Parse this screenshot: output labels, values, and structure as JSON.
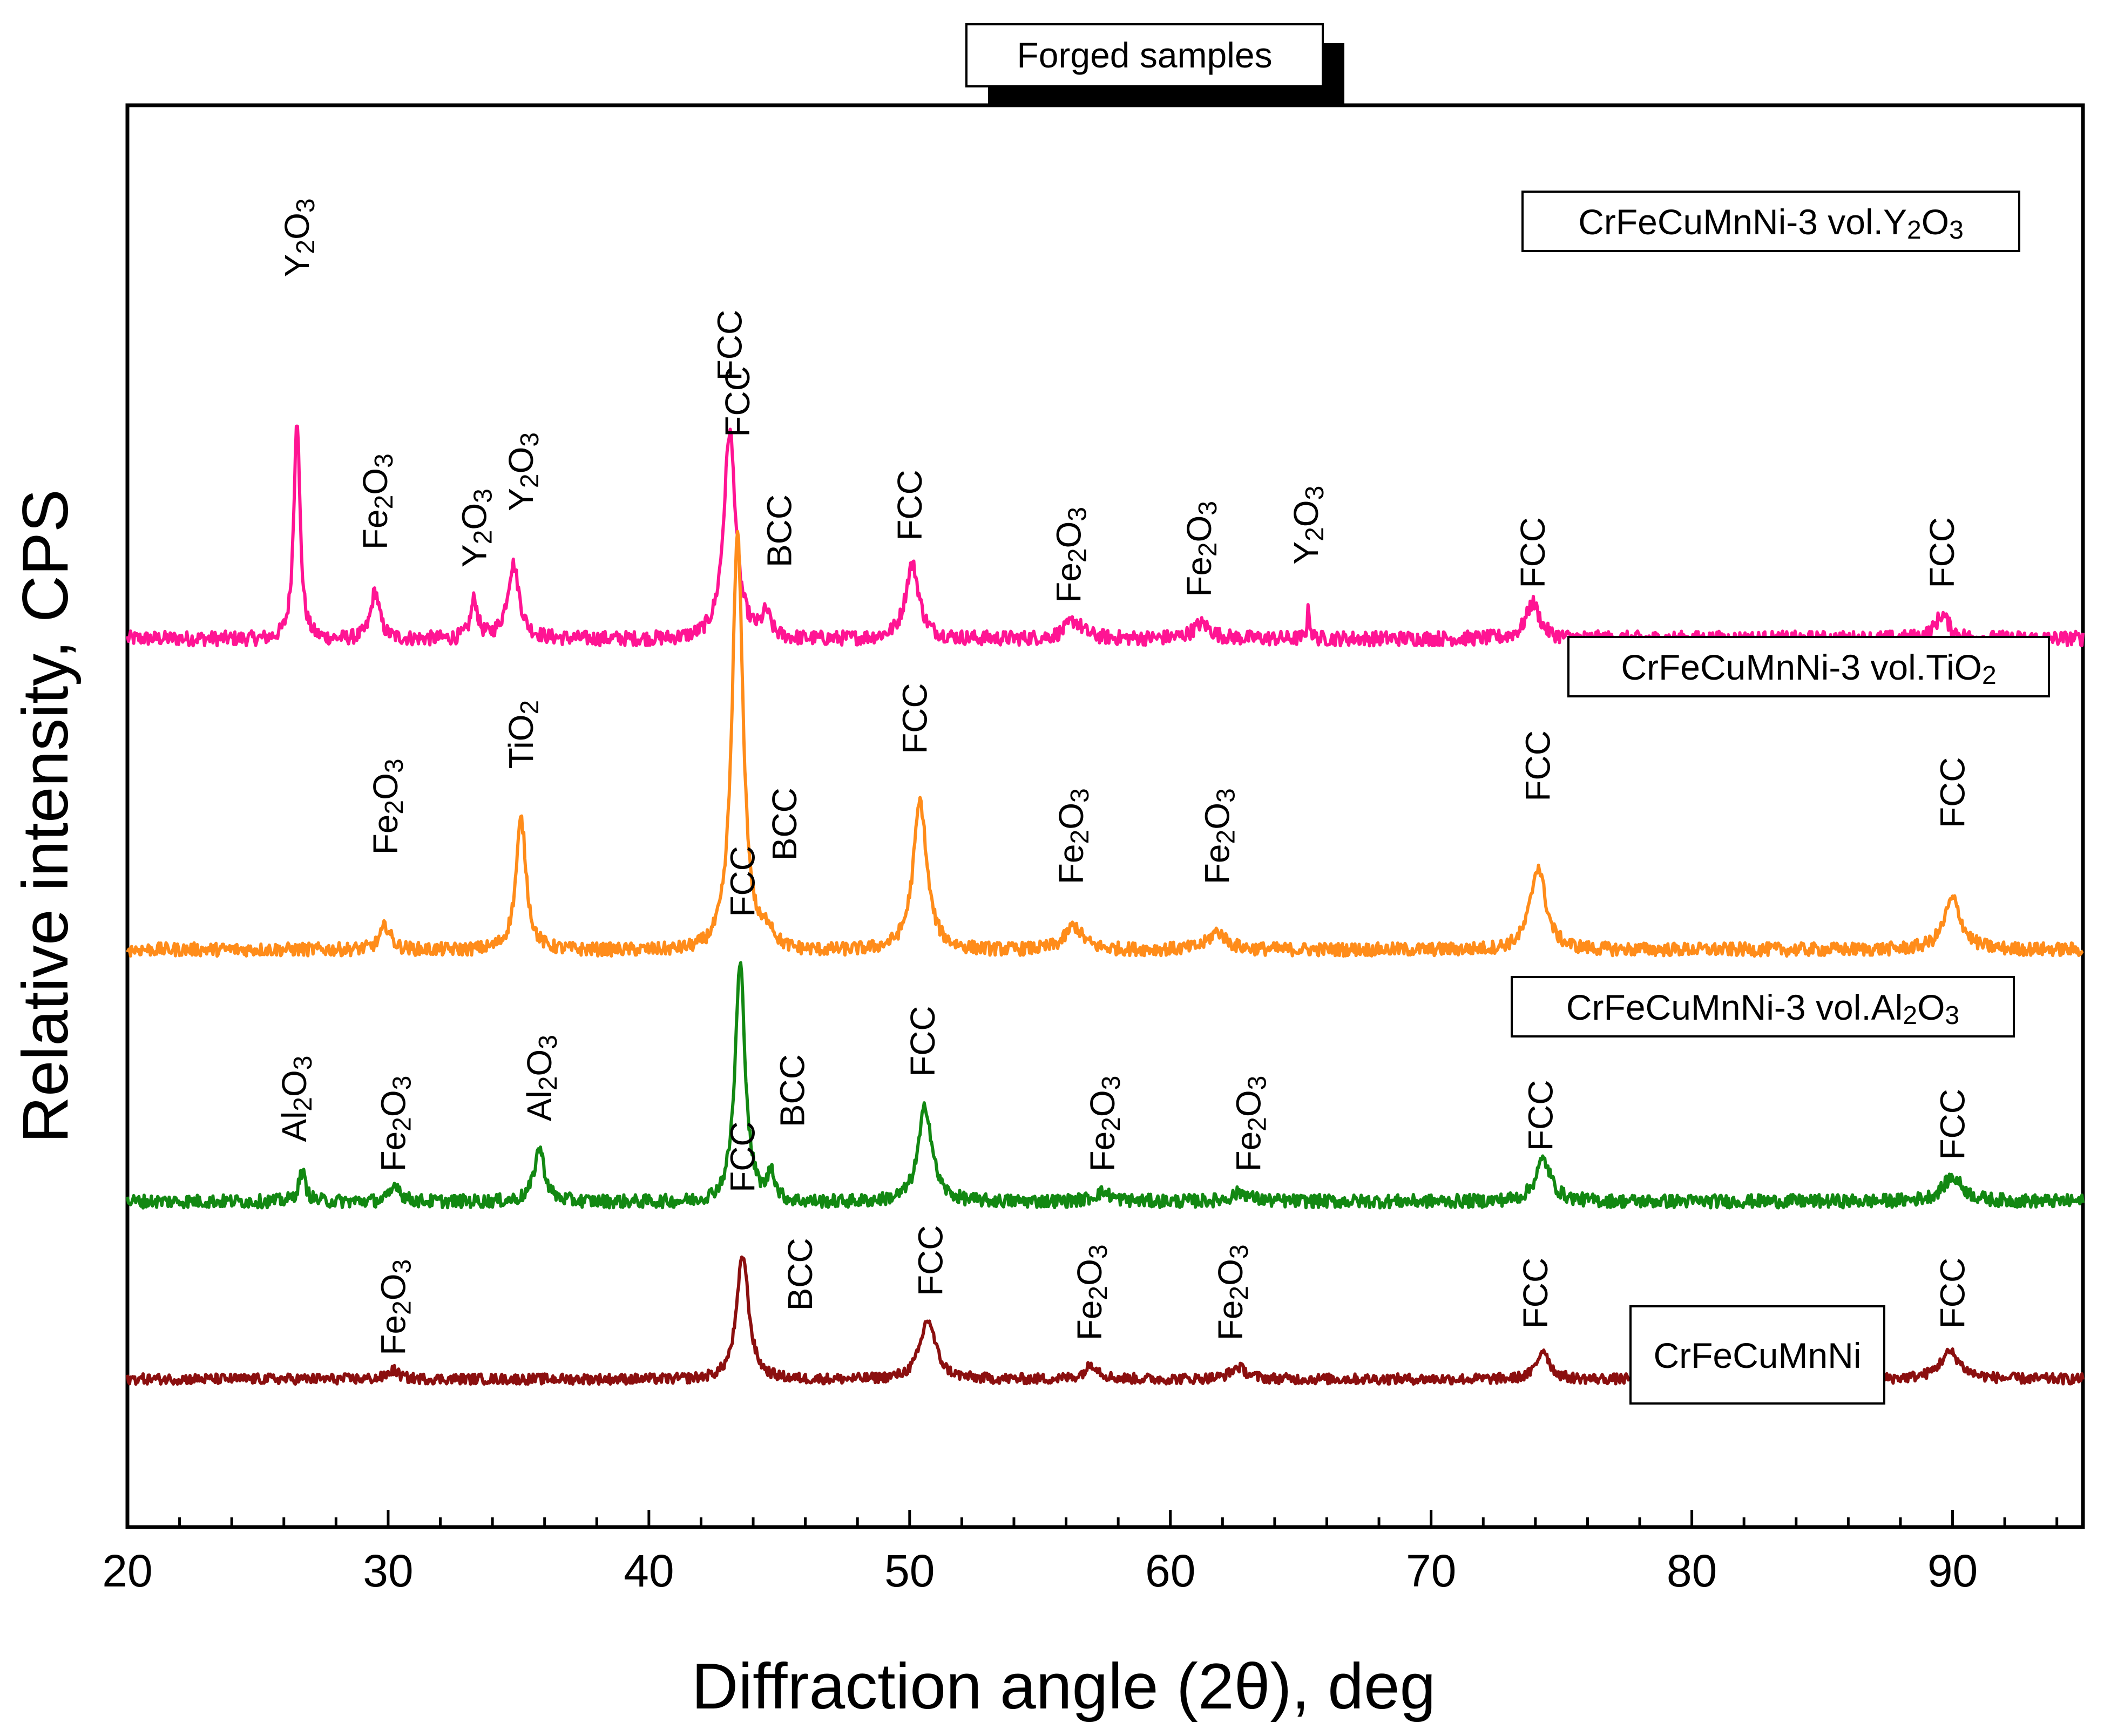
{
  "chart_data": {
    "type": "line",
    "title": "Forged samples",
    "xlabel": "Diffraction angle (2θ), deg",
    "ylabel": "Relative intensity, CPS",
    "xlim": [
      20,
      95
    ],
    "xticks": [
      20,
      30,
      40,
      50,
      60,
      70,
      80,
      90
    ],
    "yticks": [],
    "grid": false,
    "series": [
      {
        "name": "CrFeCuMnNi-3 vol.Y2O3",
        "legend_main": "CrFeCuMnNi-3 vol.Y",
        "legend_sub1": "2",
        "legend_mid": "O",
        "legend_sub2": "3",
        "color": "#ff1493",
        "offset": 3.0,
        "noise": 0.05,
        "peaks": [
          {
            "x": 26.5,
            "h": 0.75,
            "w": 0.18
          },
          {
            "x": 29.5,
            "h": 0.16,
            "w": 0.25
          },
          {
            "x": 33.3,
            "h": 0.13,
            "w": 0.2
          },
          {
            "x": 34.8,
            "h": 0.25,
            "w": 0.35
          },
          {
            "x": 43.1,
            "h": 0.7,
            "w": 0.35
          },
          {
            "x": 44.5,
            "h": 0.08,
            "w": 0.25
          },
          {
            "x": 50.1,
            "h": 0.25,
            "w": 0.4
          },
          {
            "x": 56.3,
            "h": 0.06,
            "w": 0.5
          },
          {
            "x": 61.2,
            "h": 0.05,
            "w": 0.5
          },
          {
            "x": 65.3,
            "h": 0.1,
            "w": 0.08
          },
          {
            "x": 73.9,
            "h": 0.12,
            "w": 0.4
          },
          {
            "x": 89.6,
            "h": 0.08,
            "w": 0.4
          }
        ],
        "peak_labels": [
          {
            "x": 26.5,
            "text": "Y2O3",
            "parts": [
              "Y",
              "2",
              "O",
              "3"
            ],
            "level": 4.22
          },
          {
            "x": 29.5,
            "text": "Fe2O3",
            "parts": [
              "Fe",
              "2",
              "O",
              "3"
            ],
            "level": 3.3
          },
          {
            "x": 33.3,
            "text": "Y2O3",
            "parts": [
              "Y",
              "2",
              "O",
              "3"
            ],
            "level": 3.24
          },
          {
            "x": 35.1,
            "text": "Y2O3",
            "parts": [
              "Y",
              "2",
              "O",
              "3"
            ],
            "level": 3.43
          },
          {
            "x": 43.1,
            "text": "FCC",
            "parts": [
              "FCC",
              "",
              "",
              ""
            ],
            "level": 3.87
          },
          {
            "x": 45.0,
            "text": "BCC",
            "parts": [
              "BCC",
              "",
              "",
              ""
            ],
            "level": 3.24
          },
          {
            "x": 50.0,
            "text": "FCC",
            "parts": [
              "FCC",
              "",
              "",
              ""
            ],
            "level": 3.33
          },
          {
            "x": 56.1,
            "text": "Fe2O3",
            "parts": [
              "Fe",
              "2",
              "O",
              "3"
            ],
            "level": 3.12
          },
          {
            "x": 61.1,
            "text": "Fe2O3",
            "parts": [
              "Fe",
              "2",
              "O",
              "3"
            ],
            "level": 3.14
          },
          {
            "x": 65.2,
            "text": "Y2O3",
            "parts": [
              "Y",
              "2",
              "O",
              "3"
            ],
            "level": 3.25
          },
          {
            "x": 73.9,
            "text": "FCC",
            "parts": [
              "FCC",
              "",
              "",
              ""
            ],
            "level": 3.17
          },
          {
            "x": 89.6,
            "text": "FCC",
            "parts": [
              "FCC",
              "",
              "",
              ""
            ],
            "level": 3.17
          }
        ]
      },
      {
        "name": "CrFeCuMnNi-3 vol.TiO2",
        "legend_main": "CrFeCuMnNi-3 vol.TiO",
        "legend_sub1": "2",
        "legend_mid": "",
        "legend_sub2": "",
        "color": "#ff8c1a",
        "offset": 1.95,
        "noise": 0.045,
        "peaks": [
          {
            "x": 29.9,
            "h": 0.08,
            "w": 0.3
          },
          {
            "x": 35.1,
            "h": 0.44,
            "w": 0.3
          },
          {
            "x": 43.4,
            "h": 1.4,
            "w": 0.32
          },
          {
            "x": 44.6,
            "h": 0.06,
            "w": 0.3
          },
          {
            "x": 50.4,
            "h": 0.5,
            "w": 0.4
          },
          {
            "x": 56.3,
            "h": 0.08,
            "w": 0.5
          },
          {
            "x": 61.8,
            "h": 0.06,
            "w": 0.5
          },
          {
            "x": 74.1,
            "h": 0.28,
            "w": 0.45
          },
          {
            "x": 90.0,
            "h": 0.17,
            "w": 0.5
          }
        ],
        "peak_labels": [
          {
            "x": 29.9,
            "text": "Fe2O3",
            "parts": [
              "Fe",
              "2",
              "O",
              "3"
            ],
            "level": 2.27
          },
          {
            "x": 35.1,
            "text": "TiO2",
            "parts": [
              "TiO",
              "2",
              "",
              ""
            ],
            "level": 2.56
          },
          {
            "x": 43.4,
            "text": "FCC",
            "parts": [
              "FCC",
              "",
              "",
              ""
            ],
            "level": 3.68
          },
          {
            "x": 45.2,
            "text": "BCC",
            "parts": [
              "BCC",
              "",
              "",
              ""
            ],
            "level": 2.25
          },
          {
            "x": 50.2,
            "text": "FCC",
            "parts": [
              "FCC",
              "",
              "",
              ""
            ],
            "level": 2.61
          },
          {
            "x": 56.2,
            "text": "Fe2O3",
            "parts": [
              "Fe",
              "2",
              "O",
              "3"
            ],
            "level": 2.17
          },
          {
            "x": 61.8,
            "text": "Fe2O3",
            "parts": [
              "Fe",
              "2",
              "O",
              "3"
            ],
            "level": 2.17
          },
          {
            "x": 74.1,
            "text": "FCC",
            "parts": [
              "FCC",
              "",
              "",
              ""
            ],
            "level": 2.45
          },
          {
            "x": 90.0,
            "text": "FCC",
            "parts": [
              "FCC",
              "",
              "",
              ""
            ],
            "level": 2.36
          }
        ]
      },
      {
        "name": "CrFeCuMnNi-3 vol.Al2O3",
        "legend_main": "CrFeCuMnNi-3 vol.Al",
        "legend_sub1": "2",
        "legend_mid": "O",
        "legend_sub2": "3",
        "color": "#128812",
        "offset": 1.1,
        "noise": 0.045,
        "peaks": [
          {
            "x": 26.7,
            "h": 0.1,
            "w": 0.2
          },
          {
            "x": 30.3,
            "h": 0.06,
            "w": 0.25
          },
          {
            "x": 35.8,
            "h": 0.18,
            "w": 0.3
          },
          {
            "x": 43.5,
            "h": 0.8,
            "w": 0.3
          },
          {
            "x": 44.7,
            "h": 0.1,
            "w": 0.2
          },
          {
            "x": 50.6,
            "h": 0.32,
            "w": 0.4
          },
          {
            "x": 57.4,
            "h": 0.03,
            "w": 0.5
          },
          {
            "x": 62.7,
            "h": 0.03,
            "w": 0.5
          },
          {
            "x": 74.3,
            "h": 0.14,
            "w": 0.45
          },
          {
            "x": 90.0,
            "h": 0.08,
            "w": 0.6
          }
        ],
        "peak_labels": [
          {
            "x": 26.4,
            "text": "Al2O3",
            "parts": [
              "Al",
              "2",
              "O",
              "3"
            ],
            "level": 1.3
          },
          {
            "x": 30.2,
            "text": "Fe2O3",
            "parts": [
              "Fe",
              "2",
              "O",
              "3"
            ],
            "level": 1.2
          },
          {
            "x": 35.8,
            "text": "Al2O3",
            "parts": [
              "Al",
              "2",
              "O",
              "3"
            ],
            "level": 1.37
          },
          {
            "x": 43.6,
            "text": "FCC",
            "parts": [
              "FCC",
              "",
              "",
              ""
            ],
            "level": 2.06
          },
          {
            "x": 45.5,
            "text": "BCC",
            "parts": [
              "BCC",
              "",
              "",
              ""
            ],
            "level": 1.35
          },
          {
            "x": 50.5,
            "text": "FCC",
            "parts": [
              "FCC",
              "",
              "",
              ""
            ],
            "level": 1.52
          },
          {
            "x": 57.4,
            "text": "Fe2O3",
            "parts": [
              "Fe",
              "2",
              "O",
              "3"
            ],
            "level": 1.2
          },
          {
            "x": 63.0,
            "text": "Fe2O3",
            "parts": [
              "Fe",
              "2",
              "O",
              "3"
            ],
            "level": 1.2
          },
          {
            "x": 74.2,
            "text": "FCC",
            "parts": [
              "FCC",
              "",
              "",
              ""
            ],
            "level": 1.27
          },
          {
            "x": 90.0,
            "text": "FCC",
            "parts": [
              "FCC",
              "",
              "",
              ""
            ],
            "level": 1.24
          }
        ]
      },
      {
        "name": "CrFeCuMnNi",
        "legend_main": "CrFeCuMnNi",
        "legend_sub1": "",
        "legend_mid": "",
        "legend_sub2": "",
        "color": "#8b0f0f",
        "offset": 0.5,
        "noise": 0.035,
        "peaks": [
          {
            "x": 30.2,
            "h": 0.03,
            "w": 0.3
          },
          {
            "x": 43.6,
            "h": 0.42,
            "w": 0.35
          },
          {
            "x": 50.7,
            "h": 0.2,
            "w": 0.45
          },
          {
            "x": 57.0,
            "h": 0.05,
            "w": 0.4
          },
          {
            "x": 62.6,
            "h": 0.04,
            "w": 0.45
          },
          {
            "x": 74.3,
            "h": 0.1,
            "w": 0.35
          },
          {
            "x": 89.9,
            "h": 0.09,
            "w": 0.6
          }
        ],
        "peak_labels": [
          {
            "x": 30.2,
            "text": "Fe2O3",
            "parts": [
              "Fe",
              "2",
              "O",
              "3"
            ],
            "level": 0.58
          },
          {
            "x": 43.6,
            "text": "FCC",
            "parts": [
              "FCC",
              "",
              "",
              ""
            ],
            "level": 1.13
          },
          {
            "x": 45.8,
            "text": "BCC",
            "parts": [
              "BCC",
              "",
              "",
              ""
            ],
            "level": 0.73
          },
          {
            "x": 50.8,
            "text": "FCC",
            "parts": [
              "FCC",
              "",
              "",
              ""
            ],
            "level": 0.78
          },
          {
            "x": 56.9,
            "text": "Fe2O3",
            "parts": [
              "Fe",
              "2",
              "O",
              "3"
            ],
            "level": 0.63
          },
          {
            "x": 62.3,
            "text": "Fe2O3",
            "parts": [
              "Fe",
              "2",
              "O",
              "3"
            ],
            "level": 0.63
          },
          {
            "x": 74.0,
            "text": "FCC",
            "parts": [
              "FCC",
              "",
              "",
              ""
            ],
            "level": 0.67
          },
          {
            "x": 90.0,
            "text": "FCC",
            "parts": [
              "FCC",
              "",
              "",
              ""
            ],
            "level": 0.67
          }
        ]
      }
    ],
    "ylim": [
      0,
      4.8
    ]
  }
}
